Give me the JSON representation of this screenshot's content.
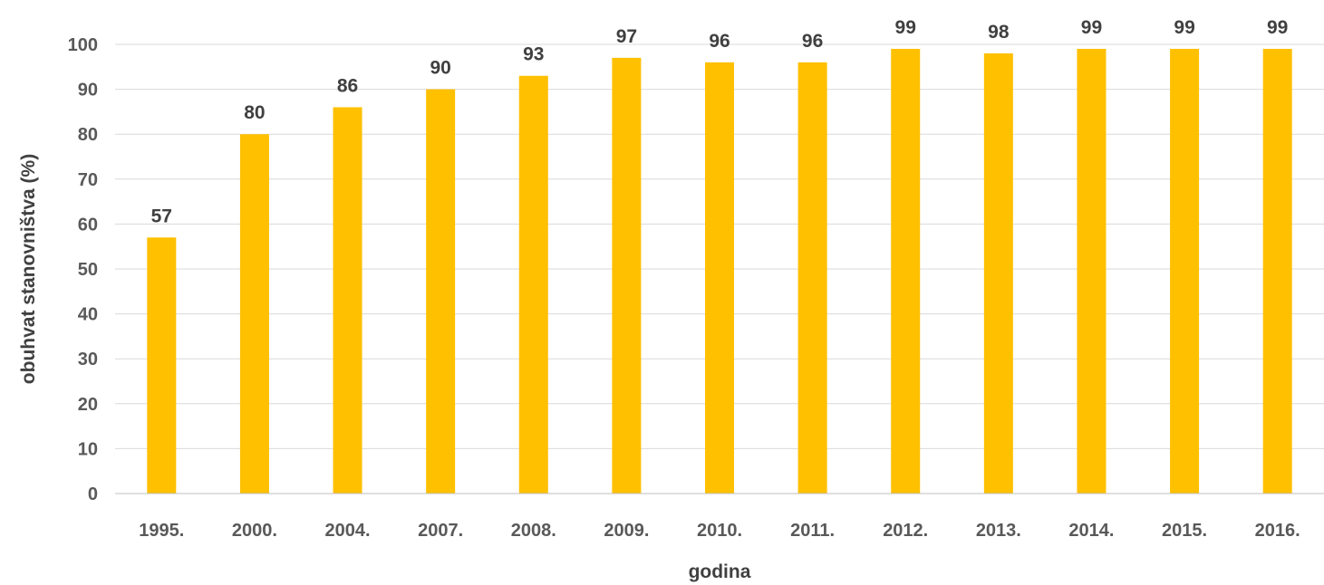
{
  "chart_data": {
    "type": "bar",
    "categories": [
      "1995.",
      "2000.",
      "2004.",
      "2007.",
      "2008.",
      "2009.",
      "2010.",
      "2011.",
      "2012.",
      "2013.",
      "2014.",
      "2015.",
      "2016."
    ],
    "values": [
      57,
      80,
      86,
      90,
      93,
      97,
      96,
      96,
      99,
      98,
      99,
      99,
      99
    ],
    "data_labels": [
      "57",
      "80",
      "86",
      "90",
      "93",
      "97",
      "96",
      "96",
      "99",
      "98",
      "99",
      "99",
      "99"
    ],
    "yticks": [
      "0",
      "10",
      "20",
      "30",
      "40",
      "50",
      "60",
      "70",
      "80",
      "90",
      "100"
    ],
    "ylim": [
      0,
      100
    ],
    "xlabel": "godina",
    "ylabel": "obuhvat stanovništva (%)",
    "grid": true,
    "legend": "none",
    "colors": {
      "bar": "#FFC000",
      "grid": "#D9D9D9",
      "axis": "#BFBFBF"
    }
  }
}
